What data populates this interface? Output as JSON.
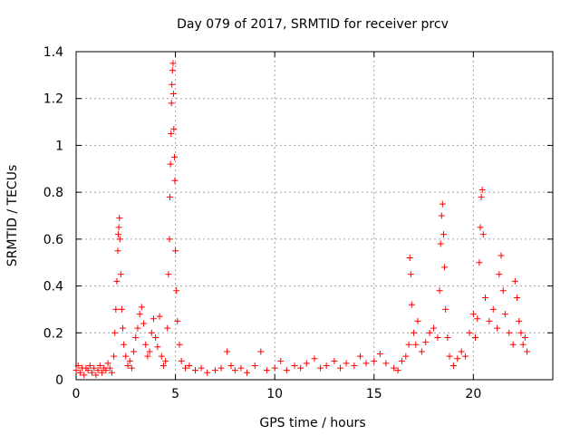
{
  "chart_data": {
    "type": "scatter",
    "title": "Day 079 of 2017, SRMTID for receiver prcv",
    "xlabel": "GPS time / hours",
    "ylabel": "SRMTID / TECUs",
    "xlim": [
      0,
      24
    ],
    "ylim": [
      0,
      1.4
    ],
    "xticks": [
      0,
      5,
      10,
      15,
      20
    ],
    "xtick_labels": [
      "0",
      "5",
      "10",
      "15",
      "20"
    ],
    "yticks": [
      0,
      0.2,
      0.4,
      0.6,
      0.8,
      1.0,
      1.2,
      1.4
    ],
    "ytick_labels": [
      "0",
      "0.2",
      "0.4",
      "0.6",
      "0.8",
      "1",
      "1.2",
      "1.4"
    ],
    "grid": true,
    "marker": "plus",
    "color": "#ff0000",
    "series": [
      {
        "name": "SRMTID",
        "points": [
          [
            0.0,
            0.04
          ],
          [
            0.1,
            0.06
          ],
          [
            0.2,
            0.03
          ],
          [
            0.3,
            0.05
          ],
          [
            0.4,
            0.02
          ],
          [
            0.5,
            0.05
          ],
          [
            0.6,
            0.04
          ],
          [
            0.7,
            0.06
          ],
          [
            0.8,
            0.03
          ],
          [
            0.9,
            0.05
          ],
          [
            1.0,
            0.02
          ],
          [
            1.1,
            0.04
          ],
          [
            1.2,
            0.06
          ],
          [
            1.3,
            0.03
          ],
          [
            1.4,
            0.05
          ],
          [
            1.5,
            0.04
          ],
          [
            1.6,
            0.07
          ],
          [
            1.7,
            0.05
          ],
          [
            1.8,
            0.03
          ],
          [
            1.9,
            0.1
          ],
          [
            1.95,
            0.2
          ],
          [
            2.0,
            0.3
          ],
          [
            2.05,
            0.42
          ],
          [
            2.1,
            0.55
          ],
          [
            2.12,
            0.62
          ],
          [
            2.15,
            0.65
          ],
          [
            2.18,
            0.69
          ],
          [
            2.2,
            0.6
          ],
          [
            2.25,
            0.45
          ],
          [
            2.3,
            0.3
          ],
          [
            2.35,
            0.22
          ],
          [
            2.4,
            0.15
          ],
          [
            2.5,
            0.1
          ],
          [
            2.6,
            0.06
          ],
          [
            2.7,
            0.08
          ],
          [
            2.8,
            0.05
          ],
          [
            2.9,
            0.12
          ],
          [
            3.0,
            0.18
          ],
          [
            3.1,
            0.22
          ],
          [
            3.2,
            0.28
          ],
          [
            3.3,
            0.31
          ],
          [
            3.4,
            0.24
          ],
          [
            3.5,
            0.15
          ],
          [
            3.6,
            0.1
          ],
          [
            3.7,
            0.12
          ],
          [
            3.8,
            0.2
          ],
          [
            3.9,
            0.26
          ],
          [
            4.0,
            0.18
          ],
          [
            4.1,
            0.14
          ],
          [
            4.2,
            0.27
          ],
          [
            4.3,
            0.1
          ],
          [
            4.4,
            0.06
          ],
          [
            4.5,
            0.08
          ],
          [
            4.6,
            0.22
          ],
          [
            4.65,
            0.45
          ],
          [
            4.7,
            0.6
          ],
          [
            4.72,
            0.78
          ],
          [
            4.75,
            0.92
          ],
          [
            4.78,
            1.05
          ],
          [
            4.8,
            1.18
          ],
          [
            4.82,
            1.26
          ],
          [
            4.85,
            1.32
          ],
          [
            4.88,
            1.35
          ],
          [
            4.9,
            1.22
          ],
          [
            4.92,
            1.07
          ],
          [
            4.95,
            0.95
          ],
          [
            4.97,
            0.85
          ],
          [
            5.0,
            0.55
          ],
          [
            5.05,
            0.38
          ],
          [
            5.1,
            0.25
          ],
          [
            5.2,
            0.15
          ],
          [
            5.3,
            0.08
          ],
          [
            5.5,
            0.05
          ],
          [
            5.7,
            0.06
          ],
          [
            6.0,
            0.04
          ],
          [
            6.3,
            0.05
          ],
          [
            6.6,
            0.03
          ],
          [
            7.0,
            0.04
          ],
          [
            7.3,
            0.05
          ],
          [
            7.6,
            0.12
          ],
          [
            7.8,
            0.06
          ],
          [
            8.0,
            0.04
          ],
          [
            8.3,
            0.05
          ],
          [
            8.6,
            0.03
          ],
          [
            9.0,
            0.06
          ],
          [
            9.3,
            0.12
          ],
          [
            9.6,
            0.04
          ],
          [
            10.0,
            0.05
          ],
          [
            10.3,
            0.08
          ],
          [
            10.6,
            0.04
          ],
          [
            11.0,
            0.06
          ],
          [
            11.3,
            0.05
          ],
          [
            11.6,
            0.07
          ],
          [
            12.0,
            0.09
          ],
          [
            12.3,
            0.05
          ],
          [
            12.6,
            0.06
          ],
          [
            13.0,
            0.08
          ],
          [
            13.3,
            0.05
          ],
          [
            13.6,
            0.07
          ],
          [
            14.0,
            0.06
          ],
          [
            14.3,
            0.1
          ],
          [
            14.6,
            0.07
          ],
          [
            15.0,
            0.08
          ],
          [
            15.3,
            0.11
          ],
          [
            15.6,
            0.07
          ],
          [
            16.0,
            0.05
          ],
          [
            16.2,
            0.04
          ],
          [
            16.4,
            0.08
          ],
          [
            16.6,
            0.1
          ],
          [
            16.75,
            0.15
          ],
          [
            16.8,
            0.52
          ],
          [
            16.85,
            0.45
          ],
          [
            16.9,
            0.32
          ],
          [
            17.0,
            0.2
          ],
          [
            17.1,
            0.15
          ],
          [
            17.2,
            0.25
          ],
          [
            17.4,
            0.12
          ],
          [
            17.6,
            0.16
          ],
          [
            17.8,
            0.2
          ],
          [
            18.0,
            0.22
          ],
          [
            18.2,
            0.18
          ],
          [
            18.3,
            0.38
          ],
          [
            18.35,
            0.58
          ],
          [
            18.4,
            0.7
          ],
          [
            18.45,
            0.75
          ],
          [
            18.5,
            0.62
          ],
          [
            18.55,
            0.48
          ],
          [
            18.6,
            0.3
          ],
          [
            18.7,
            0.18
          ],
          [
            18.8,
            0.1
          ],
          [
            19.0,
            0.06
          ],
          [
            19.2,
            0.09
          ],
          [
            19.4,
            0.12
          ],
          [
            19.6,
            0.1
          ],
          [
            19.8,
            0.2
          ],
          [
            20.0,
            0.28
          ],
          [
            20.1,
            0.18
          ],
          [
            20.2,
            0.26
          ],
          [
            20.3,
            0.5
          ],
          [
            20.35,
            0.65
          ],
          [
            20.4,
            0.78
          ],
          [
            20.45,
            0.81
          ],
          [
            20.5,
            0.62
          ],
          [
            20.6,
            0.35
          ],
          [
            20.8,
            0.25
          ],
          [
            21.0,
            0.3
          ],
          [
            21.2,
            0.22
          ],
          [
            21.3,
            0.45
          ],
          [
            21.4,
            0.53
          ],
          [
            21.5,
            0.38
          ],
          [
            21.6,
            0.28
          ],
          [
            21.8,
            0.2
          ],
          [
            22.0,
            0.15
          ],
          [
            22.1,
            0.42
          ],
          [
            22.2,
            0.35
          ],
          [
            22.3,
            0.25
          ],
          [
            22.4,
            0.2
          ],
          [
            22.5,
            0.15
          ],
          [
            22.6,
            0.18
          ],
          [
            22.7,
            0.12
          ]
        ]
      }
    ]
  }
}
